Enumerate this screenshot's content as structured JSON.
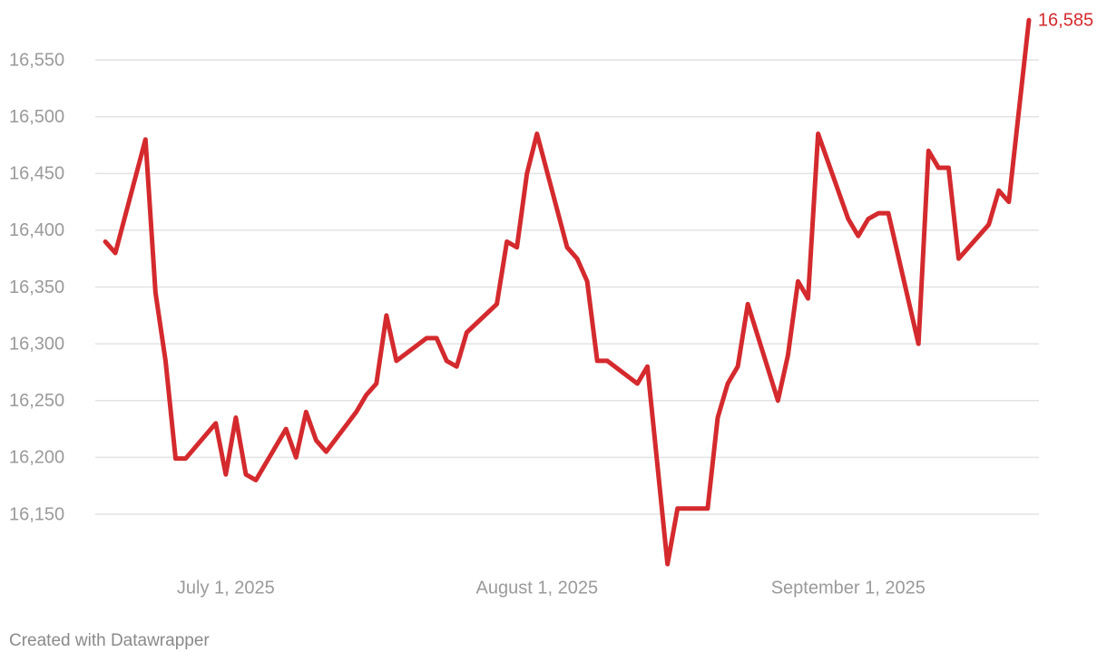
{
  "chart_data": {
    "type": "line",
    "credit": "Created with Datawrapper",
    "x": [
      "2025-06-19",
      "2025-06-20",
      "2025-06-23",
      "2025-06-24",
      "2025-06-25",
      "2025-06-26",
      "2025-06-27",
      "2025-06-30",
      "2025-07-01",
      "2025-07-02",
      "2025-07-03",
      "2025-07-04",
      "2025-07-07",
      "2025-07-08",
      "2025-07-09",
      "2025-07-10",
      "2025-07-11",
      "2025-07-14",
      "2025-07-15",
      "2025-07-16",
      "2025-07-17",
      "2025-07-18",
      "2025-07-21",
      "2025-07-22",
      "2025-07-23",
      "2025-07-24",
      "2025-07-25",
      "2025-07-28",
      "2025-07-29",
      "2025-07-30",
      "2025-07-31",
      "2025-08-01",
      "2025-08-04",
      "2025-08-05",
      "2025-08-06",
      "2025-08-07",
      "2025-08-08",
      "2025-08-11",
      "2025-08-12",
      "2025-08-14",
      "2025-08-15",
      "2025-08-18",
      "2025-08-19",
      "2025-08-20",
      "2025-08-21",
      "2025-08-22",
      "2025-08-25",
      "2025-08-26",
      "2025-08-27",
      "2025-08-28",
      "2025-08-29",
      "2025-09-01",
      "2025-09-02",
      "2025-09-03",
      "2025-09-04",
      "2025-09-05",
      "2025-09-08",
      "2025-09-09",
      "2025-09-10",
      "2025-09-11",
      "2025-09-12",
      "2025-09-15",
      "2025-09-16",
      "2025-09-17",
      "2025-09-19"
    ],
    "series": [
      {
        "color": "#d42a2e",
        "values": [
          16390,
          16380,
          16480,
          16345,
          16285,
          16199,
          16199,
          16230,
          16185,
          16235,
          16185,
          16180,
          16225,
          16200,
          16240,
          16215,
          16205,
          16240,
          16255,
          16265,
          16325,
          16285,
          16305,
          16305,
          16285,
          16280,
          16310,
          16335,
          16390,
          16385,
          16450,
          16485,
          16385,
          16375,
          16355,
          16285,
          16285,
          16265,
          16280,
          16106,
          16155,
          16155,
          16235,
          16265,
          16280,
          16335,
          16250,
          16290,
          16355,
          16340,
          16485,
          16410,
          16395,
          16410,
          16415,
          16415,
          16300,
          16470,
          16455,
          16455,
          16375,
          16405,
          16435,
          16425,
          16585
        ],
        "value_labels": [
          null,
          null,
          null,
          null,
          null,
          null,
          null,
          null,
          null,
          null,
          null,
          null,
          null,
          null,
          null,
          null,
          null,
          null,
          null,
          null,
          null,
          null,
          null,
          null,
          null,
          null,
          null,
          null,
          null,
          null,
          null,
          null,
          null,
          null,
          null,
          null,
          null,
          null,
          null,
          null,
          null,
          null,
          null,
          null,
          null,
          null,
          null,
          null,
          null,
          null,
          null,
          null,
          null,
          null,
          null,
          null,
          null,
          null,
          null,
          null,
          null,
          null,
          null,
          null,
          "16,585"
        ]
      }
    ],
    "xlim": [
      "2025-06-18",
      "2025-09-20"
    ],
    "xticks": [
      {
        "value": "2025-07-01",
        "label": "July 1, 2025"
      },
      {
        "value": "2025-08-01",
        "label": "August 1, 2025"
      },
      {
        "value": "2025-09-01",
        "label": "September 1, 2025"
      }
    ],
    "ylim": [
      16100,
      16590
    ],
    "yticks": [
      {
        "value": 16150,
        "label": "16,150"
      },
      {
        "value": 16200,
        "label": "16,200"
      },
      {
        "value": 16250,
        "label": "16,250"
      },
      {
        "value": 16300,
        "label": "16,300"
      },
      {
        "value": 16350,
        "label": "16,350"
      },
      {
        "value": 16400,
        "label": "16,400"
      },
      {
        "value": 16450,
        "label": "16,450"
      },
      {
        "value": 16500,
        "label": "16,500"
      },
      {
        "value": 16550,
        "label": "16,550"
      }
    ],
    "grid": true
  }
}
